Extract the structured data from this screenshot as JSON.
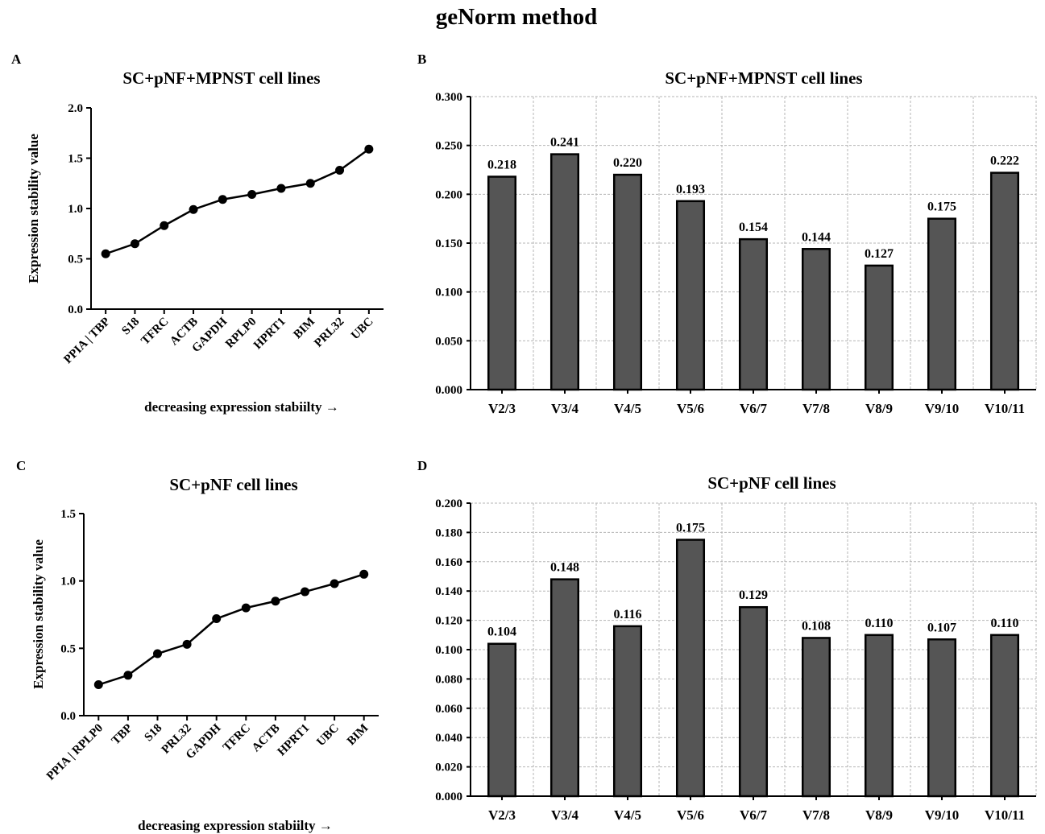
{
  "figure_title": "geNorm method",
  "chart_data": [
    {
      "panel": "A",
      "type": "line",
      "title": "SC+pNF+MPNST cell lines",
      "xlabel": "decreasing expression stabiilty →",
      "ylabel": "Expression stability value",
      "ylim": [
        0,
        2.0
      ],
      "yticks": [
        "0.0",
        "0.5",
        "1.0",
        "1.5",
        "2.0"
      ],
      "categories": [
        "PPIA | TBP",
        "S18",
        "TFRC",
        "ACTB",
        "GAPDH",
        "RPLP0",
        "HPRT1",
        "BIM",
        "PRL32",
        "UBC"
      ],
      "values": [
        0.55,
        0.65,
        0.83,
        0.99,
        1.09,
        1.14,
        1.2,
        1.25,
        1.38,
        1.59
      ],
      "grid": false
    },
    {
      "panel": "B",
      "type": "bar",
      "title": "SC+pNF+MPNST cell lines",
      "ylim": [
        0,
        0.3
      ],
      "yticks": [
        "0.000",
        "0.050",
        "0.100",
        "0.150",
        "0.200",
        "0.250",
        "0.300"
      ],
      "categories": [
        "V2/3",
        "V3/4",
        "V4/5",
        "V5/6",
        "V6/7",
        "V7/8",
        "V8/9",
        "V9/10",
        "V10/11"
      ],
      "values": [
        0.218,
        0.241,
        0.22,
        0.193,
        0.154,
        0.144,
        0.127,
        0.175,
        0.222
      ],
      "labels": [
        "0.218",
        "0.241",
        "0.220",
        "0.193",
        "0.154",
        "0.144",
        "0.127",
        "0.175",
        "0.222"
      ],
      "grid": true
    },
    {
      "panel": "C",
      "type": "line",
      "title": "SC+pNF cell lines",
      "xlabel": "decreasing expression stabiilty →",
      "ylabel": "Expression stability value",
      "ylim": [
        0,
        1.5
      ],
      "yticks": [
        "0.0",
        "0.5",
        "1.0",
        "1.5"
      ],
      "categories": [
        "PPIA | RPLP0",
        "TBP",
        "S18",
        "PRL32",
        "GAPDH",
        "TFRC",
        "ACTB",
        "HPRT1",
        "UBC",
        "BIM"
      ],
      "values": [
        0.23,
        0.3,
        0.46,
        0.53,
        0.72,
        0.8,
        0.85,
        0.92,
        0.98,
        1.05
      ],
      "grid": false
    },
    {
      "panel": "D",
      "type": "bar",
      "title": "SC+pNF cell lines",
      "ylim": [
        0,
        0.2
      ],
      "yticks": [
        "0.000",
        "0.020",
        "0.040",
        "0.060",
        "0.080",
        "0.100",
        "0.120",
        "0.140",
        "0.160",
        "0.180",
        "0.200"
      ],
      "categories": [
        "V2/3",
        "V3/4",
        "V4/5",
        "V5/6",
        "V6/7",
        "V7/8",
        "V8/9",
        "V9/10",
        "V10/11"
      ],
      "values": [
        0.104,
        0.148,
        0.116,
        0.175,
        0.129,
        0.108,
        0.11,
        0.107,
        0.11
      ],
      "labels": [
        "0.104",
        "0.148",
        "0.116",
        "0.175",
        "0.129",
        "0.108",
        "0.110",
        "0.107",
        "0.110"
      ],
      "grid": true
    }
  ]
}
